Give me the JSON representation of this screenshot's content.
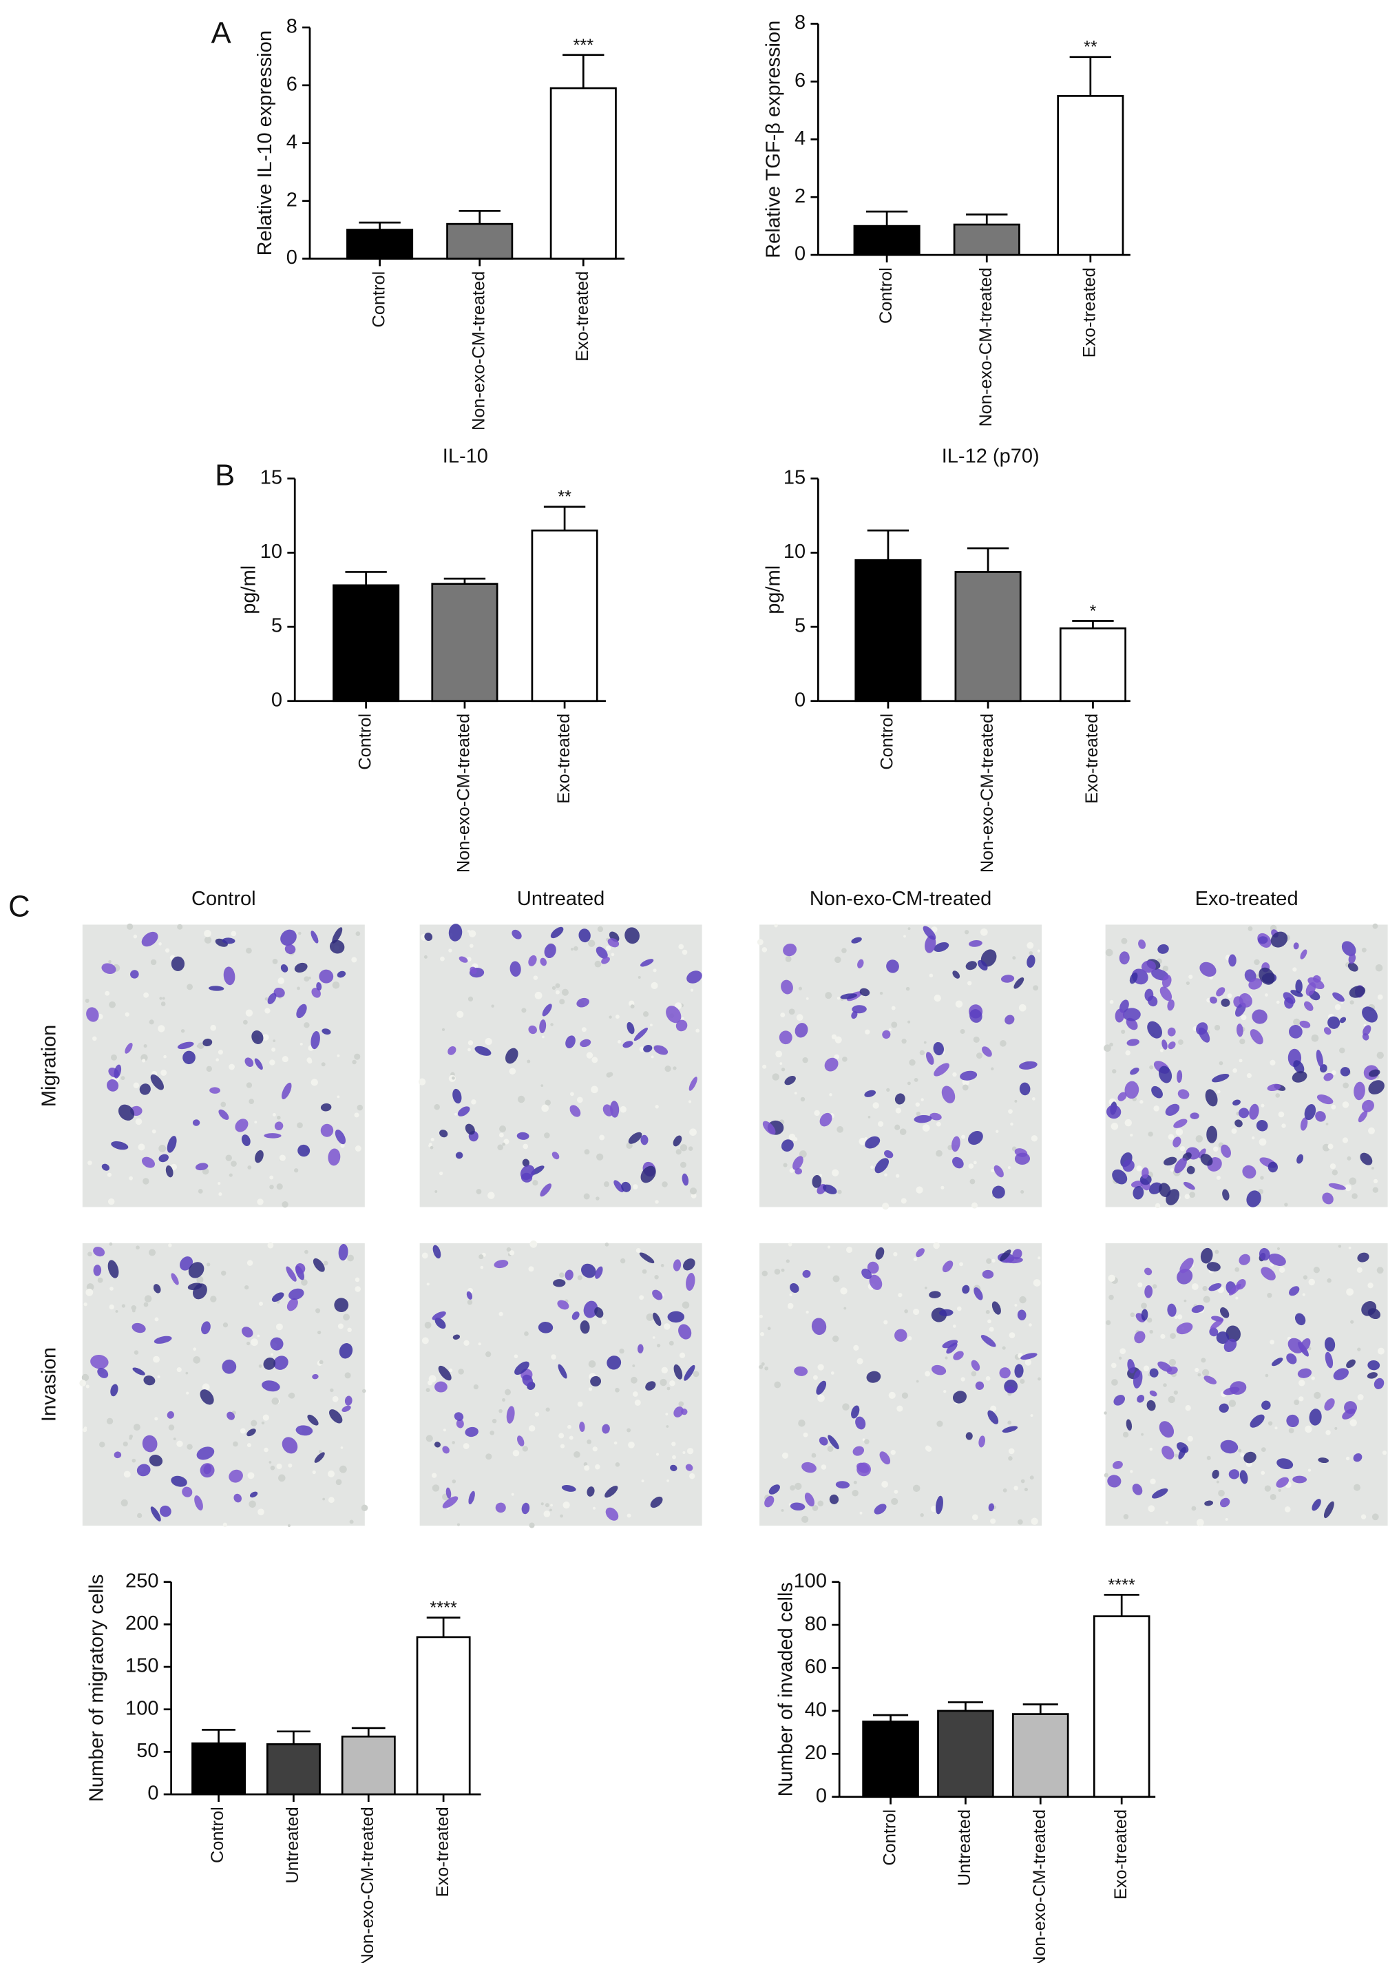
{
  "panels": [
    "A",
    "B",
    "C"
  ],
  "images": {
    "columns": [
      "Control",
      "Untreated",
      "Non-exo-CM-treated",
      "Exo-treated"
    ],
    "rows": [
      "Migration",
      "Invasion"
    ]
  },
  "chart_data": [
    {
      "type": "bar",
      "ylabel": "Relative IL-10 expression",
      "categories": [
        "Control",
        "Non-exo-CM-treated",
        "Exo-treated"
      ],
      "values": [
        1.0,
        1.2,
        5.9
      ],
      "errors": [
        0.25,
        0.45,
        1.15
      ],
      "annotations": [
        null,
        null,
        "***"
      ],
      "colors": [
        "#000000",
        "#777777",
        "#ffffff"
      ],
      "ylim": [
        0,
        8
      ],
      "yticks": [
        0,
        2,
        4,
        6,
        8
      ]
    },
    {
      "type": "bar",
      "ylabel": "Relative TGF-β expression",
      "categories": [
        "Control",
        "Non-exo-CM-treated",
        "Exo-treated"
      ],
      "values": [
        1.0,
        1.05,
        5.5
      ],
      "errors": [
        0.5,
        0.35,
        1.35
      ],
      "annotations": [
        null,
        null,
        "**"
      ],
      "colors": [
        "#000000",
        "#777777",
        "#ffffff"
      ],
      "ylim": [
        0,
        8
      ],
      "yticks": [
        0,
        2,
        4,
        6,
        8
      ]
    },
    {
      "type": "bar",
      "title": "IL-10",
      "ylabel": "pg/ml",
      "categories": [
        "Control",
        "Non-exo-CM-treated",
        "Exo-treated"
      ],
      "values": [
        7.8,
        7.9,
        11.5
      ],
      "errors": [
        0.9,
        0.35,
        1.6
      ],
      "annotations": [
        null,
        null,
        "**"
      ],
      "colors": [
        "#000000",
        "#777777",
        "#ffffff"
      ],
      "ylim": [
        0,
        15
      ],
      "yticks": [
        0,
        5,
        10,
        15
      ]
    },
    {
      "type": "bar",
      "title": "IL-12 (p70)",
      "ylabel": "pg/ml",
      "categories": [
        "Control",
        "Non-exo-CM-treated",
        "Exo-treated"
      ],
      "values": [
        9.5,
        8.7,
        4.9
      ],
      "errors": [
        2.0,
        1.6,
        0.5
      ],
      "annotations": [
        null,
        null,
        "*"
      ],
      "colors": [
        "#000000",
        "#777777",
        "#ffffff"
      ],
      "ylim": [
        0,
        15
      ],
      "yticks": [
        0,
        5,
        10,
        15
      ]
    },
    {
      "type": "bar",
      "ylabel": "Number of migratory cells",
      "categories": [
        "Control",
        "Untreated",
        "Non-exo-CM-treated",
        "Exo-treated"
      ],
      "values": [
        60,
        59,
        68,
        185
      ],
      "errors": [
        16,
        15,
        10,
        23
      ],
      "annotations": [
        null,
        null,
        null,
        "****"
      ],
      "colors": [
        "#000000",
        "#404040",
        "#bbbbbb",
        "#ffffff"
      ],
      "ylim": [
        0,
        250
      ],
      "yticks": [
        0,
        50,
        100,
        150,
        200,
        250
      ]
    },
    {
      "type": "bar",
      "ylabel": "Number of invaded cells",
      "categories": [
        "Control",
        "Untreated",
        "Non-exo-CM-treated",
        "Exo-treated"
      ],
      "values": [
        35,
        40,
        38.5,
        84
      ],
      "errors": [
        3,
        4,
        4.5,
        10
      ],
      "annotations": [
        null,
        null,
        null,
        "****"
      ],
      "colors": [
        "#000000",
        "#404040",
        "#bbbbbb",
        "#ffffff"
      ],
      "ylim": [
        0,
        100
      ],
      "yticks": [
        0,
        20,
        40,
        60,
        80,
        100
      ]
    }
  ]
}
